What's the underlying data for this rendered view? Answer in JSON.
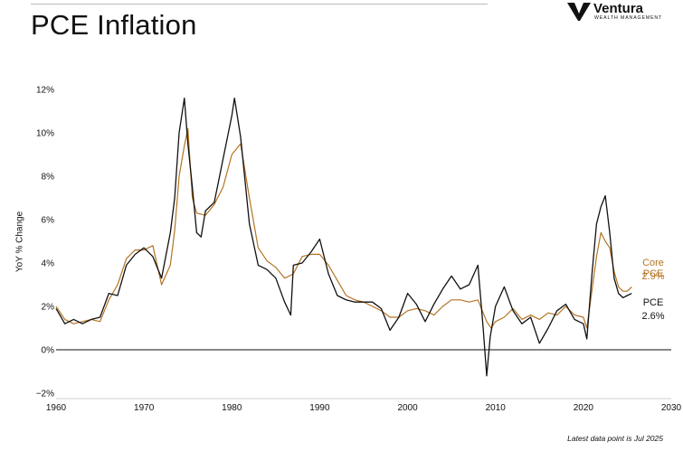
{
  "header": {
    "title": "PCE Inflation",
    "logo_brand": "Ventura",
    "logo_sub": "WEALTH MANAGEMENT"
  },
  "footnote": "Latest data point is Jul 2025",
  "labels": {
    "core_name": "Core PCE",
    "core_value": "2.9%",
    "pce_name": "PCE",
    "pce_value": "2.6%"
  },
  "colors": {
    "pce": "#111111",
    "core": "#b57424",
    "zero_line": "#111111"
  },
  "chart_data": {
    "type": "line",
    "title": "PCE Inflation",
    "ylabel": "YoY % Change",
    "xlabel": "",
    "xlim": [
      1960,
      2030
    ],
    "ylim": [
      -2,
      12
    ],
    "x_ticks": [
      "1960",
      "1970",
      "1980",
      "1990",
      "2000",
      "2010",
      "2020",
      "2030"
    ],
    "y_ticks": [
      "−2%",
      "0%",
      "2%",
      "4%",
      "6%",
      "8%",
      "10%",
      "12%"
    ],
    "grid": false,
    "series": [
      {
        "name": "PCE",
        "color": "#111111",
        "points": [
          [
            1960,
            1.9
          ],
          [
            1961,
            1.2
          ],
          [
            1962,
            1.4
          ],
          [
            1963,
            1.2
          ],
          [
            1964,
            1.4
          ],
          [
            1965,
            1.5
          ],
          [
            1966,
            2.6
          ],
          [
            1967,
            2.5
          ],
          [
            1968,
            3.9
          ],
          [
            1969,
            4.4
          ],
          [
            1970,
            4.7
          ],
          [
            1971,
            4.3
          ],
          [
            1972,
            3.3
          ],
          [
            1973,
            5.4
          ],
          [
            1973.5,
            7.0
          ],
          [
            1974,
            10.0
          ],
          [
            1974.6,
            11.6
          ],
          [
            1975,
            9.5
          ],
          [
            1975.5,
            7.5
          ],
          [
            1976,
            5.4
          ],
          [
            1976.5,
            5.2
          ],
          [
            1977,
            6.4
          ],
          [
            1978,
            6.8
          ],
          [
            1979,
            8.8
          ],
          [
            1980,
            10.8
          ],
          [
            1980.3,
            11.6
          ],
          [
            1981,
            9.8
          ],
          [
            1982,
            5.8
          ],
          [
            1983,
            3.9
          ],
          [
            1984,
            3.7
          ],
          [
            1985,
            3.3
          ],
          [
            1986,
            2.2
          ],
          [
            1986.7,
            1.6
          ],
          [
            1987,
            3.9
          ],
          [
            1988,
            4.0
          ],
          [
            1989,
            4.5
          ],
          [
            1990,
            5.1
          ],
          [
            1991,
            3.5
          ],
          [
            1992,
            2.5
          ],
          [
            1993,
            2.3
          ],
          [
            1994,
            2.2
          ],
          [
            1995,
            2.2
          ],
          [
            1996,
            2.2
          ],
          [
            1997,
            1.9
          ],
          [
            1998,
            0.9
          ],
          [
            1999,
            1.5
          ],
          [
            2000,
            2.6
          ],
          [
            2001,
            2.1
          ],
          [
            2002,
            1.3
          ],
          [
            2003,
            2.1
          ],
          [
            2004,
            2.8
          ],
          [
            2005,
            3.4
          ],
          [
            2006,
            2.8
          ],
          [
            2007,
            3.0
          ],
          [
            2008,
            3.9
          ],
          [
            2008.6,
            1.0
          ],
          [
            2009,
            -1.2
          ],
          [
            2009.4,
            0.6
          ],
          [
            2010,
            2.0
          ],
          [
            2011,
            2.9
          ],
          [
            2012,
            1.8
          ],
          [
            2013,
            1.2
          ],
          [
            2014,
            1.5
          ],
          [
            2015,
            0.3
          ],
          [
            2016,
            1.0
          ],
          [
            2017,
            1.8
          ],
          [
            2018,
            2.1
          ],
          [
            2019,
            1.4
          ],
          [
            2020,
            1.2
          ],
          [
            2020.4,
            0.5
          ],
          [
            2021,
            3.6
          ],
          [
            2021.5,
            5.8
          ],
          [
            2022,
            6.6
          ],
          [
            2022.5,
            7.1
          ],
          [
            2023,
            5.4
          ],
          [
            2023.5,
            3.3
          ],
          [
            2024,
            2.6
          ],
          [
            2024.5,
            2.4
          ],
          [
            2025,
            2.5
          ],
          [
            2025.5,
            2.6
          ]
        ]
      },
      {
        "name": "Core PCE",
        "color": "#b57424",
        "points": [
          [
            1960,
            2.0
          ],
          [
            1961,
            1.4
          ],
          [
            1962,
            1.2
          ],
          [
            1963,
            1.3
          ],
          [
            1964,
            1.4
          ],
          [
            1965,
            1.3
          ],
          [
            1966,
            2.3
          ],
          [
            1967,
            3.0
          ],
          [
            1968,
            4.2
          ],
          [
            1969,
            4.6
          ],
          [
            1970,
            4.6
          ],
          [
            1971,
            4.8
          ],
          [
            1972,
            3.0
          ],
          [
            1973,
            3.9
          ],
          [
            1973.5,
            5.5
          ],
          [
            1974,
            8.0
          ],
          [
            1974.6,
            9.4
          ],
          [
            1975,
            10.2
          ],
          [
            1975.5,
            7.0
          ],
          [
            1976,
            6.3
          ],
          [
            1977,
            6.2
          ],
          [
            1978,
            6.7
          ],
          [
            1979,
            7.5
          ],
          [
            1980,
            9.0
          ],
          [
            1981,
            9.5
          ],
          [
            1982,
            7.0
          ],
          [
            1983,
            4.7
          ],
          [
            1984,
            4.1
          ],
          [
            1985,
            3.8
          ],
          [
            1986,
            3.3
          ],
          [
            1987,
            3.5
          ],
          [
            1988,
            4.3
          ],
          [
            1989,
            4.4
          ],
          [
            1990,
            4.4
          ],
          [
            1991,
            3.9
          ],
          [
            1992,
            3.2
          ],
          [
            1993,
            2.5
          ],
          [
            1994,
            2.3
          ],
          [
            1995,
            2.2
          ],
          [
            1996,
            2.0
          ],
          [
            1997,
            1.8
          ],
          [
            1998,
            1.5
          ],
          [
            1999,
            1.5
          ],
          [
            2000,
            1.8
          ],
          [
            2001,
            1.9
          ],
          [
            2002,
            1.8
          ],
          [
            2003,
            1.6
          ],
          [
            2004,
            2.0
          ],
          [
            2005,
            2.3
          ],
          [
            2006,
            2.3
          ],
          [
            2007,
            2.2
          ],
          [
            2008,
            2.3
          ],
          [
            2009,
            1.3
          ],
          [
            2009.5,
            1.0
          ],
          [
            2010,
            1.3
          ],
          [
            2011,
            1.5
          ],
          [
            2012,
            1.9
          ],
          [
            2013,
            1.4
          ],
          [
            2014,
            1.6
          ],
          [
            2015,
            1.4
          ],
          [
            2016,
            1.7
          ],
          [
            2017,
            1.6
          ],
          [
            2018,
            2.0
          ],
          [
            2019,
            1.6
          ],
          [
            2020,
            1.5
          ],
          [
            2020.4,
            1.0
          ],
          [
            2021,
            2.8
          ],
          [
            2021.5,
            4.3
          ],
          [
            2022,
            5.4
          ],
          [
            2022.5,
            5.0
          ],
          [
            2023,
            4.7
          ],
          [
            2023.5,
            3.6
          ],
          [
            2024,
            2.9
          ],
          [
            2024.5,
            2.7
          ],
          [
            2025,
            2.7
          ],
          [
            2025.5,
            2.9
          ]
        ]
      }
    ]
  }
}
